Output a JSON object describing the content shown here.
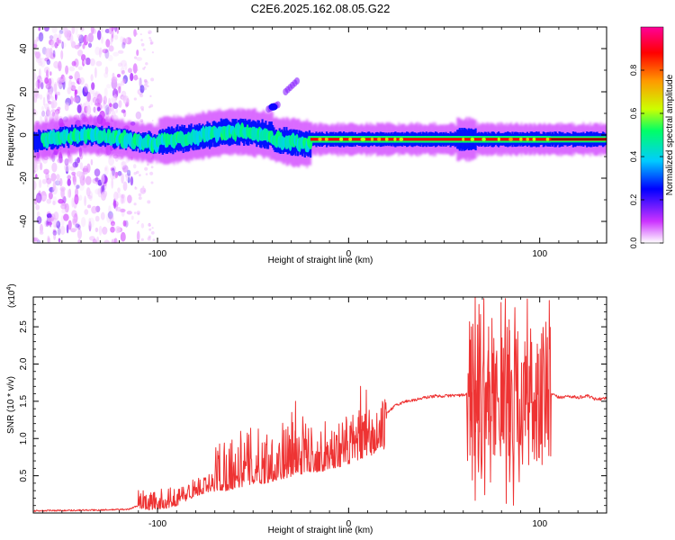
{
  "title": "C2E6.2025.162.08.05.G22",
  "chart_data": [
    {
      "type": "heatmap",
      "xlabel": "Height of straight line (km)",
      "ylabel": "Frequency (Hz)",
      "xlim": [
        -165,
        135
      ],
      "ylim": [
        -50,
        50
      ],
      "xticks": [
        -100,
        0,
        100
      ],
      "xtick_labels": [
        "-100",
        "0",
        "100"
      ],
      "yticks": [
        -40,
        -20,
        0,
        20,
        40
      ],
      "ytick_labels": [
        "-40",
        "-20",
        "0",
        "20",
        "40"
      ],
      "colorbar": {
        "label": "Normalized spectral amplitude",
        "range": [
          0,
          1
        ],
        "ticks": [
          0.0,
          0.2,
          0.4,
          0.6,
          0.8
        ],
        "tick_labels": [
          "0.0",
          "0.2",
          "0.4",
          "0.6",
          "0.8"
        ],
        "colors": [
          "#ffffff",
          "#cc33ff",
          "#0000ff",
          "#00ccff",
          "#00ff66",
          "#ccff00",
          "#ff9900",
          "#ff0000",
          "#ff0099"
        ]
      },
      "features": [
        {
          "name": "main-band",
          "x": [
            -165,
            135
          ],
          "center_hz": -2,
          "halfwidth_hz": 4
        },
        {
          "name": "noise-region",
          "x": [
            -165,
            -115
          ],
          "amplitude": 0.15
        },
        {
          "name": "fragment-1",
          "x": [
            -42,
            -37
          ],
          "y": [
            12,
            14
          ]
        },
        {
          "name": "fragment-2",
          "x": [
            -33,
            -27
          ],
          "y": [
            20,
            25
          ]
        }
      ]
    },
    {
      "type": "line",
      "xlabel": "Height of straight line (km)",
      "ylabel": "SNR (10 * v/v)",
      "y_multiplier": "(x10^4)",
      "y_multiplier_base": "(x10",
      "y_multiplier_exp": "4",
      "y_multiplier_close": ")",
      "xlim": [
        -165,
        135
      ],
      "ylim": [
        0,
        2.9
      ],
      "xticks": [
        -100,
        0,
        100
      ],
      "xtick_labels": [
        "-100",
        "0",
        "100"
      ],
      "yticks": [
        0.5,
        1.0,
        1.5,
        2.0,
        2.5
      ],
      "ytick_labels": [
        "0.5",
        "1.0",
        "1.5",
        "2.0",
        "2.5"
      ],
      "series": [
        {
          "name": "SNR",
          "color": "#ee3333",
          "x": [
            -165,
            -130,
            -115,
            -110,
            -105,
            -100,
            -95,
            -90,
            -85,
            -80,
            -75,
            -70,
            -65,
            -60,
            -55,
            -50,
            -45,
            -40,
            -35,
            -30,
            -25,
            -20,
            -15,
            -10,
            -5,
            0,
            5,
            10,
            15,
            20,
            25,
            30,
            35,
            40,
            45,
            50,
            55,
            60,
            64,
            66,
            68,
            70,
            72,
            75,
            78,
            80,
            82,
            85,
            88,
            90,
            93,
            96,
            100,
            104,
            106,
            110,
            115,
            120,
            125,
            130,
            135
          ],
          "y": [
            0.03,
            0.04,
            0.05,
            0.1,
            0.06,
            0.08,
            0.1,
            0.15,
            0.25,
            0.35,
            0.4,
            0.45,
            0.45,
            0.5,
            0.55,
            0.6,
            0.6,
            0.65,
            0.7,
            0.75,
            0.8,
            0.85,
            0.85,
            0.9,
            0.95,
            1.0,
            1.1,
            1.15,
            1.25,
            1.35,
            1.45,
            1.5,
            1.52,
            1.55,
            1.57,
            1.57,
            1.58,
            1.58,
            1.6,
            2.7,
            0.8,
            2.2,
            0.6,
            1.9,
            2.3,
            0.7,
            2.4,
            1.0,
            2.2,
            0.9,
            2.4,
            0.5,
            2.3,
            1.0,
            1.6,
            1.55,
            1.57,
            1.55,
            1.57,
            1.52,
            1.55
          ],
          "noise_envelope": [
            {
              "x": [
                -110,
                -70
              ],
              "amp": 0.12
            },
            {
              "x": [
                -70,
                -20
              ],
              "amp": 0.35
            },
            {
              "x": [
                -20,
                20
              ],
              "amp": 0.3
            },
            {
              "x": [
                20,
                62
              ],
              "amp": 0.04
            },
            {
              "x": [
                62,
                106
              ],
              "amp": 1.0
            },
            {
              "x": [
                106,
                135
              ],
              "amp": 0.04
            }
          ]
        }
      ]
    }
  ]
}
